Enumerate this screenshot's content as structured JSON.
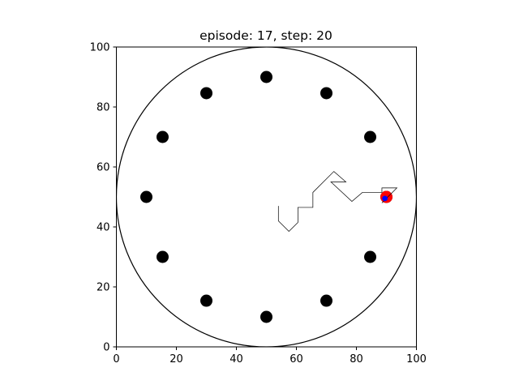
{
  "chart_data": {
    "type": "scatter",
    "title": "episode: 17, step: 20",
    "xlabel": "",
    "ylabel": "",
    "xlim": [
      0,
      100
    ],
    "ylim": [
      0,
      100
    ],
    "xticks": [
      0,
      20,
      40,
      60,
      80,
      100
    ],
    "yticks": [
      0,
      20,
      40,
      60,
      80,
      100
    ],
    "grid": false,
    "boundary_circle": {
      "center": [
        50,
        50
      ],
      "radius": 50,
      "color": "#000000"
    },
    "targets": {
      "color": "#000000",
      "points": [
        [
          50,
          90
        ],
        [
          70,
          84.6
        ],
        [
          84.6,
          70
        ],
        [
          90,
          50
        ],
        [
          84.6,
          30
        ],
        [
          70,
          15.4
        ],
        [
          50,
          10
        ],
        [
          30,
          15.4
        ],
        [
          15.4,
          30
        ],
        [
          10,
          50
        ],
        [
          15.4,
          70
        ],
        [
          30,
          84.6
        ]
      ]
    },
    "goal": {
      "x": 90,
      "y": 50,
      "color": "#ff0000"
    },
    "agent": {
      "x": 89.5,
      "y": 49.5,
      "color": "#0000ff"
    },
    "trajectory": {
      "color": "#000000",
      "points": [
        [
          54,
          47
        ],
        [
          54,
          42
        ],
        [
          57.5,
          38.5
        ],
        [
          60.5,
          41.5
        ],
        [
          60.5,
          46.5
        ],
        [
          65.5,
          46.5
        ],
        [
          65.5,
          51.5
        ],
        [
          72.5,
          58.5
        ],
        [
          76.5,
          55
        ],
        [
          71.5,
          55
        ],
        [
          78.5,
          48.5
        ],
        [
          82,
          51.5
        ],
        [
          88.5,
          51.5
        ],
        [
          88.5,
          53
        ],
        [
          93.5,
          53
        ],
        [
          88.5,
          48
        ]
      ]
    }
  }
}
